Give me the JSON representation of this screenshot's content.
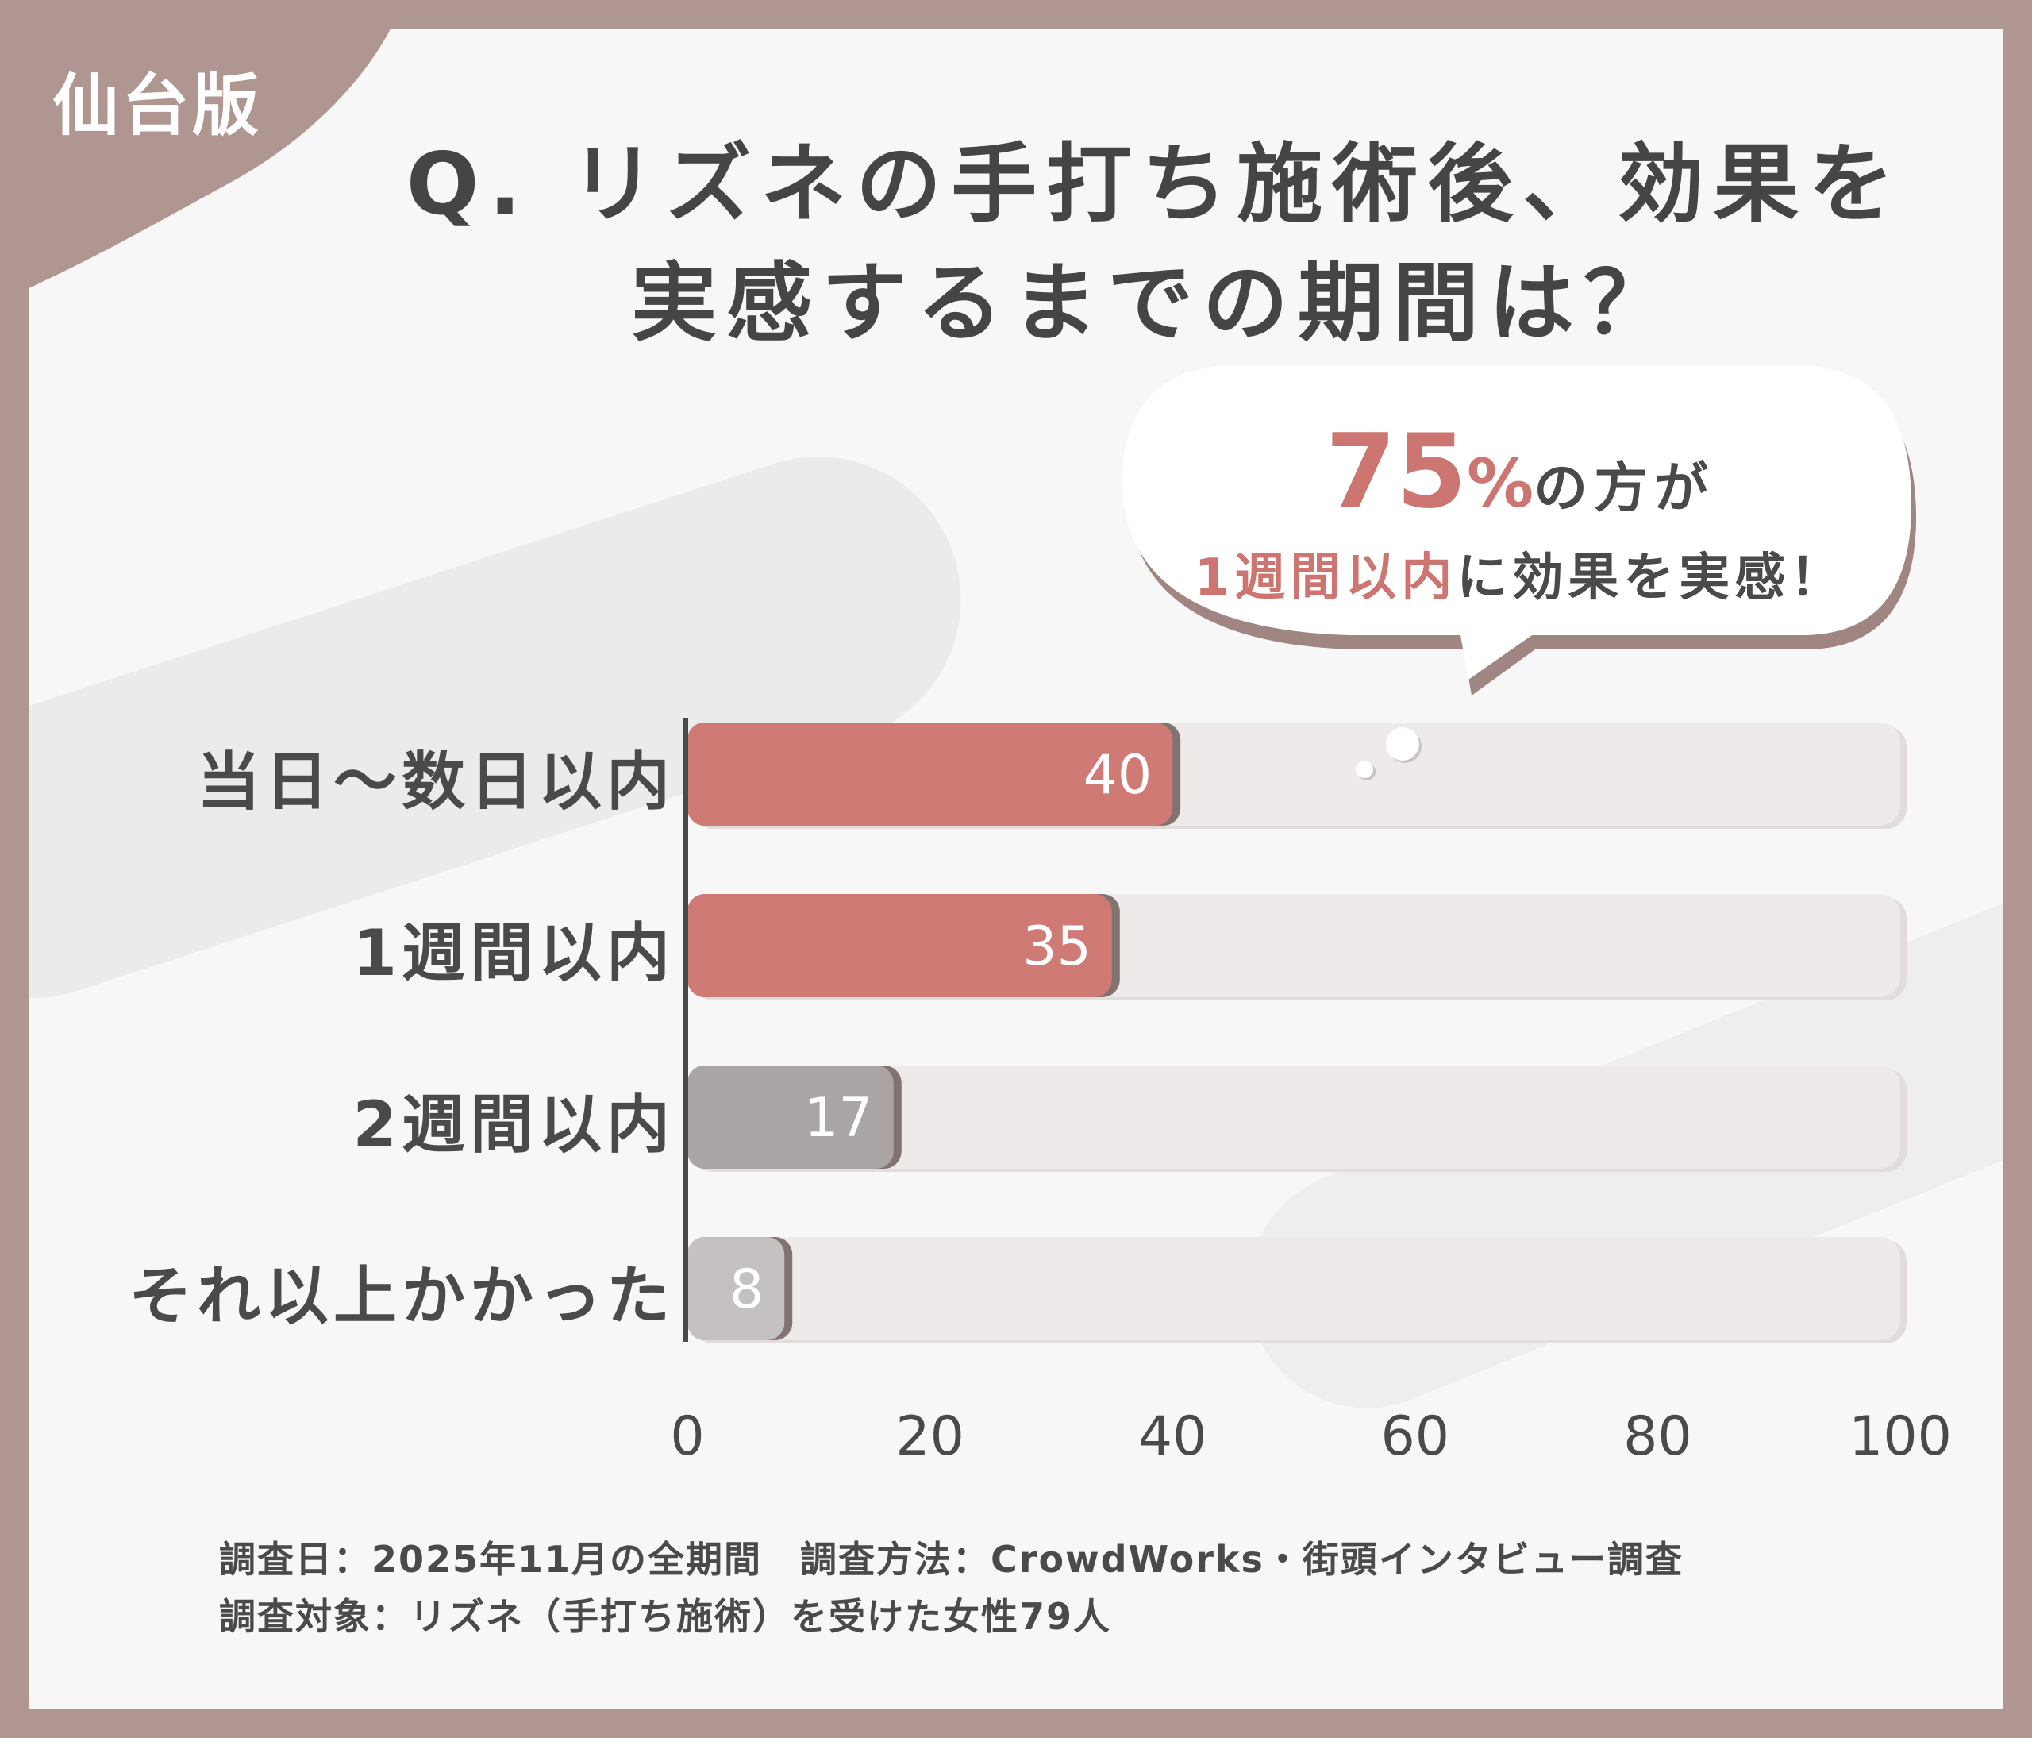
{
  "badge": {
    "edition": "仙台版"
  },
  "question": {
    "line1": "Q. リズネの手打ち施術後、効果を",
    "line2": "実感するまでの期間は？"
  },
  "callout": {
    "percent": "75",
    "percent_sign": "%",
    "line1_rest": "の方が",
    "highlight": "1週間以内",
    "line2_rest": "に効果を実感！"
  },
  "colors": {
    "highlight_bar": "#cf7a74",
    "muted_bar": "#a9a5a4",
    "track": "#eeeaea",
    "text": "#4a4a4a",
    "frame": "#b09690"
  },
  "chart_data": {
    "type": "bar",
    "orientation": "horizontal",
    "categories": [
      "当日〜数日以内",
      "1週間以内",
      "2週間以内",
      "それ以上かかった"
    ],
    "values": [
      40,
      35,
      17,
      8
    ],
    "bar_colors": [
      "#cf7a74",
      "#cf7a74",
      "#a9a5a4",
      "#c4c1c0"
    ],
    "data_labels": [
      "40",
      "35",
      "17",
      "8"
    ],
    "xlim": [
      0,
      100
    ],
    "x_ticks": [
      "0",
      "20",
      "40",
      "60",
      "80",
      "100"
    ],
    "grid": false,
    "legend": "none"
  },
  "footnotes": {
    "line1": "調査日：2025年11月の全期間　調査方法：CrowdWorks・街頭インタビュー調査",
    "line2": "調査対象：リズネ（手打ち施術）を受けた女性79人"
  }
}
